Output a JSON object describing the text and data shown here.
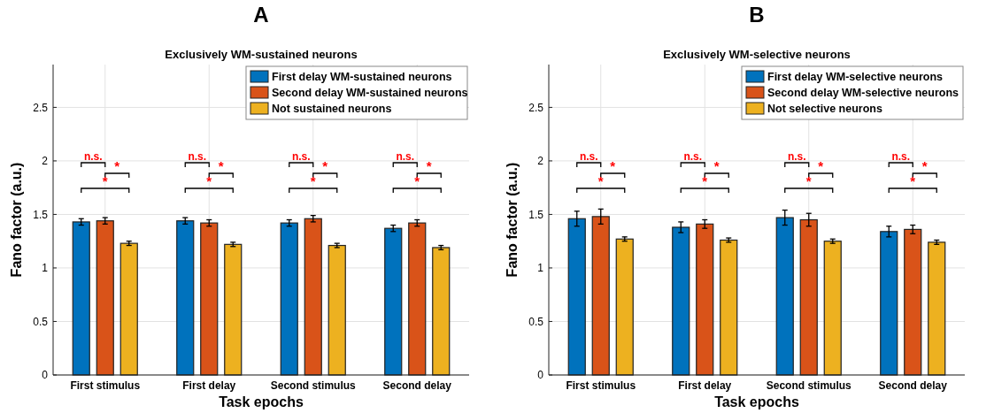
{
  "chart_data": [
    {
      "type": "bar",
      "title": "Exclusively WM-sustained neurons",
      "xlabel": "Task epochs",
      "ylabel": "Fano factor (a.u.)",
      "categories": [
        "First stimulus",
        "First delay",
        "Second stimulus",
        "Second delay"
      ],
      "ylim": [
        0,
        2.9
      ],
      "yticks": [
        0,
        0.5,
        1,
        1.5,
        2,
        2.5
      ],
      "grid": true,
      "legend": "top right",
      "series": [
        {
          "name": "First delay WM-sustained neurons",
          "color": "#0072bd",
          "values": [
            1.43,
            1.44,
            1.42,
            1.37
          ],
          "errors": [
            0.03,
            0.03,
            0.03,
            0.03
          ]
        },
        {
          "name": "Second delay WM-sustained neurons",
          "color": "#d95319",
          "values": [
            1.44,
            1.42,
            1.46,
            1.42
          ],
          "errors": [
            0.03,
            0.03,
            0.03,
            0.03
          ]
        },
        {
          "name": "Not sustained neurons",
          "color": "#edb120",
          "values": [
            1.23,
            1.22,
            1.21,
            1.19
          ],
          "errors": [
            0.02,
            0.02,
            0.02,
            0.02
          ]
        }
      ],
      "annotations": [
        "A",
        "n.s.",
        "*",
        "*",
        "n.s.",
        "*",
        "*",
        "n.s.",
        "*",
        "*",
        "n.s.",
        "*",
        "*"
      ]
    },
    {
      "type": "bar",
      "title": "Exclusively WM-selective neurons",
      "xlabel": "Task epochs",
      "ylabel": "Fano factor (a.u.)",
      "categories": [
        "First stimulus",
        "First delay",
        "Second stimulus",
        "Second delay"
      ],
      "ylim": [
        0,
        2.9
      ],
      "yticks": [
        0,
        0.5,
        1,
        1.5,
        2,
        2.5
      ],
      "grid": true,
      "legend": "top right",
      "series": [
        {
          "name": "First delay WM-selective neurons",
          "color": "#0072bd",
          "values": [
            1.46,
            1.38,
            1.47,
            1.34
          ],
          "errors": [
            0.07,
            0.05,
            0.07,
            0.05
          ]
        },
        {
          "name": "Second delay WM-selective neurons",
          "color": "#d95319",
          "values": [
            1.48,
            1.41,
            1.45,
            1.36
          ],
          "errors": [
            0.07,
            0.04,
            0.06,
            0.04
          ]
        },
        {
          "name": "Not selective neurons",
          "color": "#edb120",
          "values": [
            1.27,
            1.26,
            1.25,
            1.24
          ],
          "errors": [
            0.02,
            0.02,
            0.02,
            0.02
          ]
        }
      ],
      "annotations": [
        "B",
        "n.s.",
        "*",
        "*",
        "n.s.",
        "*",
        "*",
        "n.s.",
        "*",
        "*",
        "n.s.",
        "*",
        "*"
      ]
    }
  ]
}
